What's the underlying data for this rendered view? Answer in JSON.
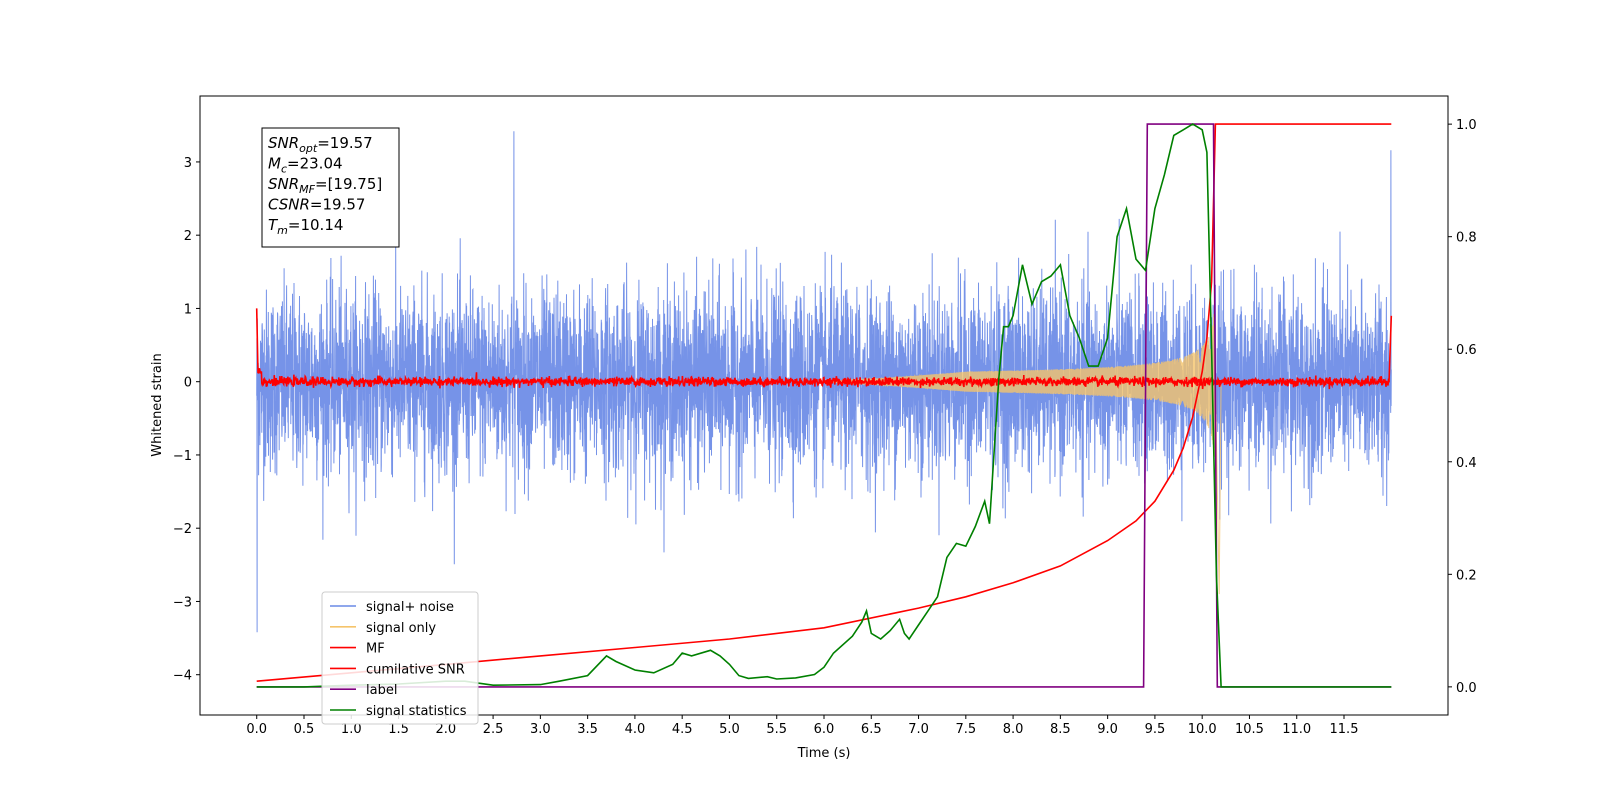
{
  "chart_data": {
    "type": "line",
    "xlabel": "Time (s)",
    "ylabel": "Whitened strain",
    "xlim": [
      -0.6,
      12.6
    ],
    "ylim": [
      -4.55,
      3.9
    ],
    "ylim_right": [
      -0.05,
      1.05
    ],
    "x_ticks": [
      0.0,
      0.5,
      1.0,
      1.5,
      2.0,
      2.5,
      3.0,
      3.5,
      4.0,
      4.5,
      5.0,
      5.5,
      6.0,
      6.5,
      7.0,
      7.5,
      8.0,
      8.5,
      9.0,
      9.5,
      10.0,
      10.5,
      11.0,
      11.5
    ],
    "x_tick_labels": [
      "0.0",
      "0.5",
      "1.0",
      "1.5",
      "2.0",
      "2.5",
      "3.0",
      "3.5",
      "4.0",
      "4.5",
      "5.0",
      "5.5",
      "6.0",
      "6.5",
      "7.0",
      "7.5",
      "8.0",
      "8.5",
      "9.0",
      "9.5",
      "10.0",
      "10.5",
      "11.0",
      "11.5"
    ],
    "y_ticks": [
      3,
      2,
      1,
      0,
      -1,
      -2,
      -3,
      -4
    ],
    "y_tick_labels": [
      "3",
      "2",
      "1",
      "0",
      "−1",
      "−2",
      "−3",
      "−4"
    ],
    "y2_ticks": [
      1.0,
      0.8,
      0.6,
      0.4,
      0.2,
      0.0
    ],
    "y2_tick_labels": [
      "1.0",
      "0.8",
      "0.6",
      "0.4",
      "0.2",
      "0.0"
    ],
    "grid": false,
    "legend_position": "lower-left",
    "annotation": {
      "lines": [
        {
          "base": "SNR",
          "sub": "opt",
          "rest": "=19.57"
        },
        {
          "base": "M",
          "sub": "c",
          "rest": "=23.04"
        },
        {
          "base": "SNR",
          "sub": "MF",
          "rest": "=[19.75]"
        },
        {
          "base": "CSNR",
          "sub": "",
          "rest": "=19.57"
        },
        {
          "base": "T",
          "sub": "m",
          "rest": "=10.14"
        }
      ]
    },
    "merger_time": 10.14,
    "series": [
      {
        "name": "signal+ noise",
        "color": "#6a8ae6",
        "axis": "left",
        "kind": "noise",
        "x_range": [
          0,
          12
        ],
        "noise_std": 0.62,
        "spike_max": 3.42,
        "spike_min": -3.42
      },
      {
        "name": "signal only",
        "color": "#f5c46b",
        "axis": "left",
        "kind": "chirp",
        "x_range": [
          0,
          10.14
        ],
        "peak_amplitude": 1.25
      },
      {
        "name": "MF",
        "color": "#ff0000",
        "axis": "left",
        "kind": "mf",
        "x_range": [
          0,
          12
        ],
        "start_value": 1.0,
        "end_value": 0.9,
        "noise_std": 0.03
      },
      {
        "name": "cumilative SNR",
        "color": "#ff0000",
        "axis": "right",
        "x": [
          0,
          1,
          2,
          3,
          4,
          5,
          6,
          7,
          7.5,
          8,
          8.5,
          9,
          9.3,
          9.5,
          9.7,
          9.8,
          9.9,
          10.0,
          10.05,
          10.1,
          10.14,
          12
        ],
        "y": [
          0.01,
          0.025,
          0.04,
          0.055,
          0.07,
          0.085,
          0.105,
          0.14,
          0.16,
          0.185,
          0.215,
          0.26,
          0.295,
          0.33,
          0.385,
          0.425,
          0.48,
          0.56,
          0.62,
          0.72,
          1.0,
          1.0
        ]
      },
      {
        "name": "label",
        "color": "#800080",
        "axis": "right",
        "x": [
          0,
          9.38,
          9.42,
          10.12,
          10.16,
          12
        ],
        "y": [
          0,
          0,
          1,
          1,
          0,
          0
        ]
      },
      {
        "name": "signal statistics",
        "color": "#008000",
        "axis": "right",
        "x": [
          0,
          0.5,
          1.0,
          1.5,
          2.0,
          2.2,
          2.5,
          3.0,
          3.2,
          3.5,
          3.7,
          3.8,
          4.0,
          4.2,
          4.4,
          4.5,
          4.6,
          4.8,
          4.9,
          5.0,
          5.1,
          5.2,
          5.4,
          5.5,
          5.7,
          5.9,
          6.0,
          6.1,
          6.3,
          6.4,
          6.45,
          6.5,
          6.6,
          6.7,
          6.8,
          6.85,
          6.9,
          7.0,
          7.1,
          7.2,
          7.3,
          7.4,
          7.5,
          7.6,
          7.7,
          7.75,
          7.8,
          7.85,
          7.9,
          7.95,
          8.0,
          8.1,
          8.2,
          8.3,
          8.4,
          8.5,
          8.6,
          8.7,
          8.8,
          8.9,
          9.0,
          9.1,
          9.2,
          9.3,
          9.4,
          9.5,
          9.6,
          9.7,
          9.8,
          9.9,
          10.0,
          10.05,
          10.1,
          10.15,
          10.2,
          10.5,
          11.0,
          12.0
        ],
        "y": [
          0.0,
          0.0,
          0.003,
          0.005,
          0.01,
          0.01,
          0.003,
          0.004,
          0.01,
          0.02,
          0.055,
          0.045,
          0.03,
          0.025,
          0.04,
          0.06,
          0.055,
          0.065,
          0.055,
          0.04,
          0.02,
          0.015,
          0.018,
          0.014,
          0.016,
          0.022,
          0.035,
          0.06,
          0.09,
          0.115,
          0.135,
          0.095,
          0.085,
          0.1,
          0.12,
          0.095,
          0.085,
          0.11,
          0.135,
          0.16,
          0.23,
          0.255,
          0.25,
          0.285,
          0.33,
          0.29,
          0.42,
          0.55,
          0.64,
          0.64,
          0.66,
          0.75,
          0.68,
          0.72,
          0.73,
          0.75,
          0.66,
          0.62,
          0.57,
          0.57,
          0.62,
          0.8,
          0.85,
          0.76,
          0.74,
          0.85,
          0.91,
          0.98,
          0.99,
          1.0,
          0.99,
          0.95,
          0.6,
          0.2,
          0.0,
          0.0,
          0.0,
          0.0
        ]
      }
    ]
  }
}
